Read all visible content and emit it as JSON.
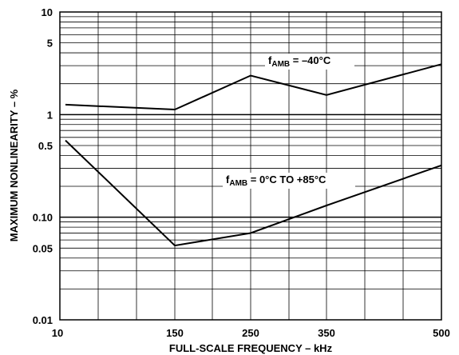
{
  "chart_data": {
    "type": "line",
    "title": "",
    "xlabel": "FULL-SCALE FREQUENCY – kHz",
    "ylabel": "MAXIMUM NONLINEARITY – %",
    "y_scale": "log",
    "ylim": [
      0.01,
      10
    ],
    "x_ticks": [
      "10",
      "150",
      "250",
      "350",
      "500"
    ],
    "y_ticks": [
      "10",
      "5",
      "1",
      "0.5",
      "0.10",
      "0.05",
      "0.01"
    ],
    "grid": true,
    "series": [
      {
        "name": "f_AMB = –40°C",
        "x": [
          "10",
          "150",
          "250",
          "350",
          "500"
        ],
        "values": [
          1.25,
          1.12,
          2.4,
          1.55,
          3.1
        ]
      },
      {
        "name": "f_AMB = 0°C TO +85°C",
        "x": [
          "10",
          "150",
          "250",
          "350",
          "500"
        ],
        "values": [
          0.56,
          0.053,
          0.07,
          0.13,
          0.32
        ]
      }
    ],
    "annotations": [
      {
        "main": "f",
        "sub": "AMB",
        "rest": " = –40°C"
      },
      {
        "main": "f",
        "sub": "AMB",
        "rest": " = 0°C TO +85°C"
      }
    ]
  }
}
